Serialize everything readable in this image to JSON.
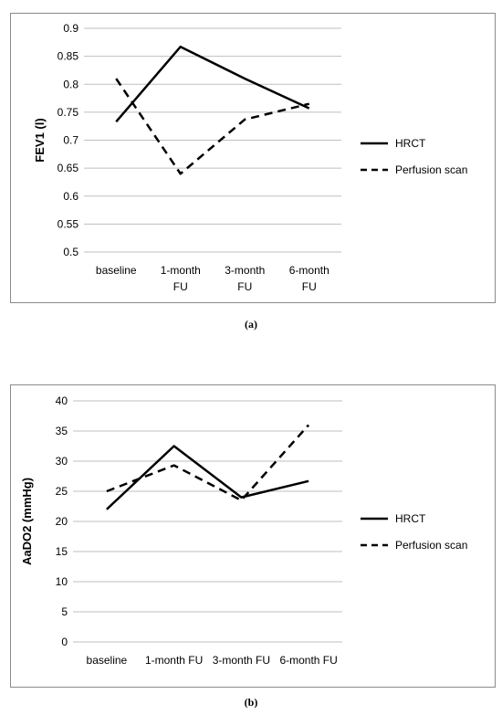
{
  "captions": [
    "(a)",
    "(b)"
  ],
  "chart_data": [
    {
      "type": "line",
      "ylabel": "FEV1 (l)",
      "xlabel": "",
      "categories": [
        [
          "baseline"
        ],
        [
          "1-month",
          "FU"
        ],
        [
          "3-month",
          "FU"
        ],
        [
          "6-month",
          "FU"
        ]
      ],
      "ylim": [
        0.5,
        0.9
      ],
      "yticks": [
        "0.5",
        "0.55",
        "0.6",
        "0.65",
        "0.7",
        "0.75",
        "0.8",
        "0.85",
        "0.9"
      ],
      "ytick_values": [
        0.5,
        0.55,
        0.6,
        0.65,
        0.7,
        0.75,
        0.8,
        0.85,
        0.9
      ],
      "grid": true,
      "legend_placement": "right",
      "series": [
        {
          "name": "HRCT",
          "style": "solid",
          "values": [
            0.733,
            0.867,
            0.81,
            0.757
          ]
        },
        {
          "name": "Perfusion scan",
          "style": "dashed",
          "values": [
            0.81,
            0.64,
            0.737,
            0.765
          ]
        }
      ],
      "color": "#000000"
    },
    {
      "type": "line",
      "ylabel": "AaDO2 (mmHg)",
      "xlabel": "",
      "categories": [
        [
          "baseline"
        ],
        [
          "1-month FU"
        ],
        [
          "3-month FU"
        ],
        [
          "6-month FU"
        ]
      ],
      "ylim": [
        0,
        40
      ],
      "yticks": [
        "0",
        "5",
        "10",
        "15",
        "20",
        "25",
        "30",
        "35",
        "40"
      ],
      "ytick_values": [
        0,
        5,
        10,
        15,
        20,
        25,
        30,
        35,
        40
      ],
      "grid": true,
      "legend_placement": "right",
      "series": [
        {
          "name": "HRCT",
          "style": "solid",
          "values": [
            22,
            32.5,
            24,
            26.7
          ]
        },
        {
          "name": "Perfusion scan",
          "style": "dashed",
          "values": [
            25,
            29.3,
            23.5,
            36
          ]
        }
      ],
      "color": "#000000"
    }
  ]
}
